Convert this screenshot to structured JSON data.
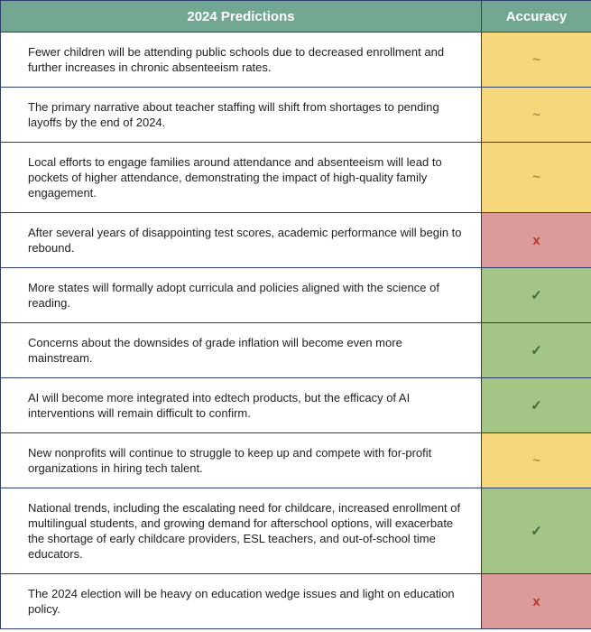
{
  "header": {
    "prediction": "2024 Predictions",
    "accuracy": "Accuracy",
    "color": "#72a892"
  },
  "rows": [
    {
      "prediction": "Fewer children will be attending public schools due to decreased enrollment and further increases in chronic absenteeism rates.",
      "accuracy": "~",
      "color": "#f6d77c",
      "mark_color": "#b08a45"
    },
    {
      "prediction": "The primary narrative about teacher staffing will shift from shortages to pending layoffs by the end of 2024.",
      "accuracy": "~",
      "color": "#f6d77c",
      "mark_color": "#b08a45"
    },
    {
      "prediction": "Local efforts to engage families around attendance and absenteeism will lead to pockets of higher attendance, demonstrating the impact of high-quality family engagement.",
      "accuracy": "~",
      "color": "#f6d77c",
      "mark_color": "#b08a45"
    },
    {
      "prediction": "After several years of disappointing test scores, academic performance will begin to rebound.",
      "accuracy": "x",
      "color": "#da9b9a",
      "mark_color": "#b3372a"
    },
    {
      "prediction": "More states will formally adopt curricula and policies aligned with the science of reading.",
      "accuracy": "✓",
      "color": "#a4c585",
      "mark_color": "#3e6b38"
    },
    {
      "prediction": "Concerns about the downsides of grade inflation will become even more mainstream.",
      "accuracy": "✓",
      "color": "#a4c585",
      "mark_color": "#3e6b38"
    },
    {
      "prediction": "AI will become more integrated into edtech products, but the efficacy of AI interventions will remain difficult to confirm.",
      "accuracy": "✓",
      "color": "#a4c585",
      "mark_color": "#3e6b38"
    },
    {
      "prediction": "New nonprofits will continue to struggle to keep up and compete with for-profit organizations in hiring tech talent.",
      "accuracy": "~",
      "color": "#f6d77c",
      "mark_color": "#b08a45"
    },
    {
      "prediction": "National trends, including the escalating need for childcare, increased enrollment of multilingual students, and growing demand for afterschool options, will exacerbate the shortage of early childcare providers, ESL teachers, and out-of-school time educators.",
      "accuracy": "✓",
      "color": "#a4c585",
      "mark_color": "#3e6b38"
    },
    {
      "prediction": "The 2024 election will be heavy on education wedge issues and light on education policy.",
      "accuracy": "x",
      "color": "#da9b9a",
      "mark_color": "#b3372a"
    }
  ]
}
